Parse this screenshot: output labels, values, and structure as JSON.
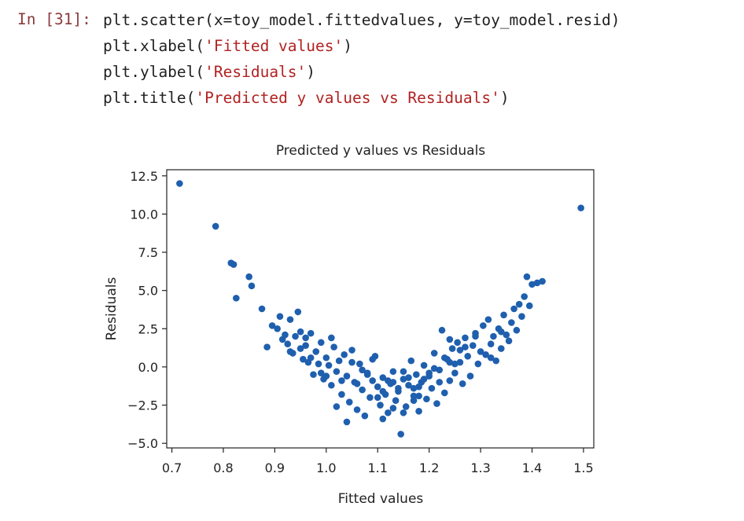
{
  "cell": {
    "prompt": "In [31]:",
    "lines": [
      {
        "code": "plt.scatter(x=toy_model.fittedvalues, y=toy_model.resid)",
        "pre": "",
        "str": "",
        "post": ""
      },
      {
        "code": "",
        "pre": "plt.xlabel(",
        "str": "'Fitted values'",
        "post": ")"
      },
      {
        "code": "",
        "pre": "plt.ylabel(",
        "str": "'Residuals'",
        "post": ")"
      },
      {
        "code": "",
        "pre": "plt.title(",
        "str": "'Predicted y values vs Residuals'",
        "post": ")"
      }
    ]
  },
  "chart_data": {
    "type": "scatter",
    "title": "Predicted y values vs Residuals",
    "xlabel": "Fitted values",
    "ylabel": "Residuals",
    "xlim": [
      0.69,
      1.52
    ],
    "ylim": [
      -5.3,
      12.9
    ],
    "xticks": [
      "0.7",
      "0.8",
      "0.9",
      "1.0",
      "1.1",
      "1.2",
      "1.3",
      "1.4",
      "1.5"
    ],
    "yticks": [
      "−5.0",
      "−2.5",
      "0.0",
      "2.5",
      "5.0",
      "7.5",
      "10.0",
      "12.5"
    ],
    "grid": false,
    "color": "#1f5fae",
    "series": [
      {
        "x": [
          0.715,
          0.785,
          0.815,
          0.82,
          0.825,
          0.85,
          0.855,
          0.875,
          0.885,
          0.895,
          0.905,
          0.91,
          0.915,
          0.92,
          0.925,
          0.93,
          0.935,
          0.94,
          0.945,
          0.95,
          0.955,
          0.96,
          0.965,
          0.97,
          0.975,
          0.98,
          0.985,
          0.99,
          0.995,
          1.0,
          1.005,
          1.01,
          1.015,
          1.02,
          1.025,
          1.03,
          1.035,
          1.04,
          1.045,
          1.05,
          1.055,
          1.06,
          1.065,
          1.07,
          1.075,
          1.08,
          1.085,
          1.09,
          1.095,
          1.1,
          1.105,
          1.11,
          1.115,
          1.12,
          1.125,
          1.13,
          1.135,
          1.14,
          1.145,
          1.15,
          1.155,
          1.16,
          1.165,
          1.17,
          1.175,
          1.18,
          1.185,
          1.19,
          1.195,
          1.2,
          1.205,
          1.21,
          1.215,
          1.22,
          1.225,
          1.23,
          1.235,
          1.24,
          1.245,
          1.25,
          1.255,
          1.26,
          1.265,
          1.27,
          1.275,
          1.28,
          1.285,
          1.29,
          1.295,
          1.3,
          1.305,
          1.31,
          1.315,
          1.32,
          1.325,
          1.33,
          1.335,
          1.34,
          1.345,
          1.35,
          1.355,
          1.36,
          1.365,
          1.37,
          1.375,
          1.38,
          1.385,
          1.39,
          1.395,
          1.4,
          1.41,
          1.42,
          1.495,
          0.93,
          0.95,
          0.97,
          0.99,
          1.01,
          1.03,
          1.05,
          1.07,
          1.09,
          1.11,
          1.13,
          1.15,
          1.17,
          1.19,
          1.21,
          1.23,
          1.25,
          1.27,
          1.29,
          1.06,
          1.08,
          1.1,
          1.12,
          1.14,
          1.16,
          1.18,
          1.2,
          1.22,
          1.24,
          1.04,
          1.11,
          1.13,
          1.15,
          1.17,
          0.96,
          1.0,
          1.02,
          1.18,
          1.24,
          1.26,
          1.32,
          1.34
        ],
        "y": [
          12.0,
          9.2,
          6.8,
          6.7,
          4.5,
          5.9,
          5.3,
          3.8,
          1.3,
          2.7,
          2.5,
          3.3,
          1.8,
          2.1,
          1.5,
          3.1,
          0.9,
          2.0,
          3.6,
          1.2,
          0.5,
          1.9,
          0.3,
          2.2,
          -0.5,
          1.0,
          0.2,
          1.6,
          -0.8,
          0.6,
          0.1,
          -1.2,
          1.3,
          -0.3,
          0.4,
          -1.8,
          0.8,
          -0.6,
          -2.3,
          0.3,
          -1.0,
          -2.8,
          0.2,
          -1.5,
          -3.2,
          -0.4,
          -2.0,
          -0.9,
          0.7,
          -1.3,
          -2.5,
          -0.7,
          -1.8,
          -3.0,
          -1.1,
          -0.3,
          -2.2,
          -1.6,
          -4.4,
          -0.8,
          -2.6,
          -1.2,
          0.4,
          -1.9,
          -0.5,
          -2.9,
          -1.0,
          0.1,
          -2.1,
          -0.6,
          -1.4,
          0.9,
          -2.4,
          -0.2,
          2.4,
          -1.7,
          0.5,
          -0.9,
          1.2,
          -0.4,
          1.6,
          0.3,
          -1.1,
          1.9,
          0.7,
          -0.6,
          1.4,
          2.2,
          0.2,
          1.0,
          2.7,
          0.8,
          3.1,
          1.5,
          2.0,
          0.4,
          2.5,
          1.2,
          3.4,
          2.1,
          1.7,
          2.9,
          3.8,
          2.4,
          4.1,
          3.3,
          4.6,
          5.9,
          4.0,
          5.4,
          5.5,
          5.6,
          10.4,
          1.0,
          2.3,
          0.6,
          -0.4,
          1.9,
          -0.9,
          1.1,
          -0.2,
          0.5,
          -1.6,
          -1.0,
          -0.3,
          -1.4,
          -0.8,
          -0.1,
          0.6,
          0.2,
          1.3,
          2.0,
          -1.1,
          -0.5,
          -2.0,
          -0.9,
          -1.4,
          -0.7,
          -1.3,
          -0.4,
          -1.0,
          0.3,
          -3.6,
          -3.4,
          -2.7,
          -3.0,
          -2.2,
          1.4,
          -0.6,
          -2.6,
          -1.9,
          1.8,
          1.1,
          0.6,
          2.3
        ]
      }
    ]
  }
}
